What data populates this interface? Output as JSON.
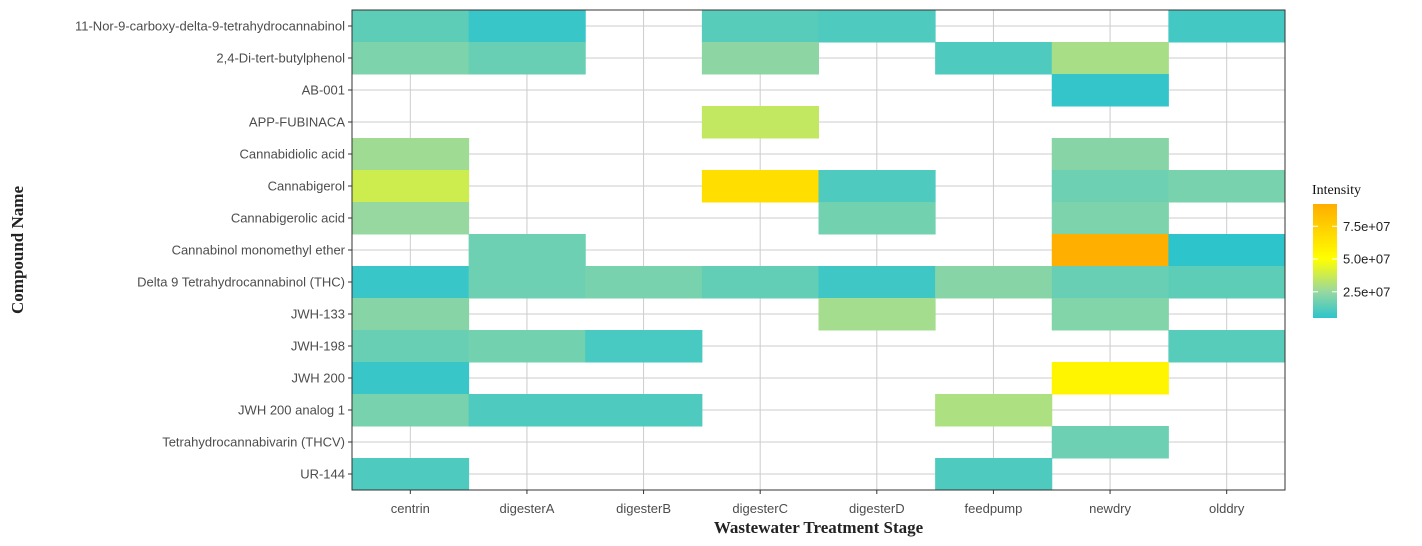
{
  "chart_data": {
    "type": "heatmap",
    "xlabel": "Wastewater Treatment Stage",
    "ylabel": "Compound Name",
    "legend_title": "Intensity",
    "legend_position": "right",
    "grid": true,
    "color_scale": {
      "min": 5000000,
      "max": 92000000,
      "stops": [
        {
          "value": 5000000,
          "color": "#2ec4cc"
        },
        {
          "value": 25000000,
          "color": "#97d8a0"
        },
        {
          "value": 50000000,
          "color": "#ffff00"
        },
        {
          "value": 92000000,
          "color": "#ffad00"
        }
      ]
    },
    "legend_ticks": [
      {
        "value": 25000000,
        "label": "2.5e+07"
      },
      {
        "value": 50000000,
        "label": "5.0e+07"
      },
      {
        "value": 75000000,
        "label": "7.5e+07"
      }
    ],
    "x": [
      "centrin",
      "digesterA",
      "digesterB",
      "digesterC",
      "digesterD",
      "feedpump",
      "newdry",
      "olddry"
    ],
    "y": [
      "11-Nor-9-carboxy-delta-9-tetrahydrocannabinol",
      "2,4-Di-tert-butylphenol",
      "AB-001",
      "APP-FUBINACA",
      "Cannabidiolic acid",
      "Cannabigerol",
      "Cannabigerolic acid",
      "Cannabinol monomethyl ether",
      "Delta 9 Tetrahydrocannabinol (THC)",
      "JWH-133",
      "JWH-198",
      "JWH 200",
      "JWH 200 analog 1",
      "Tetrahydrocannabivarin (THCV)",
      "UR-144"
    ],
    "cells": [
      {
        "x": "centrin",
        "y": "11-Nor-9-carboxy-delta-9-tetrahydrocannabinol",
        "value": 14000000
      },
      {
        "x": "digesterA",
        "y": "11-Nor-9-carboxy-delta-9-tetrahydrocannabinol",
        "value": 7000000
      },
      {
        "x": "digesterC",
        "y": "11-Nor-9-carboxy-delta-9-tetrahydrocannabinol",
        "value": 13000000
      },
      {
        "x": "digesterD",
        "y": "11-Nor-9-carboxy-delta-9-tetrahydrocannabinol",
        "value": 11000000
      },
      {
        "x": "olddry",
        "y": "11-Nor-9-carboxy-delta-9-tetrahydrocannabinol",
        "value": 9000000
      },
      {
        "x": "centrin",
        "y": "2,4-Di-tert-butylphenol",
        "value": 20000000
      },
      {
        "x": "digesterA",
        "y": "2,4-Di-tert-butylphenol",
        "value": 16000000
      },
      {
        "x": "digesterC",
        "y": "2,4-Di-tert-butylphenol",
        "value": 23000000
      },
      {
        "x": "feedpump",
        "y": "2,4-Di-tert-butylphenol",
        "value": 11000000
      },
      {
        "x": "newdry",
        "y": "2,4-Di-tert-butylphenol",
        "value": 29000000
      },
      {
        "x": "newdry",
        "y": "AB-001",
        "value": 6000000
      },
      {
        "x": "digesterC",
        "y": "APP-FUBINACA",
        "value": 35000000
      },
      {
        "x": "centrin",
        "y": "Cannabidiolic acid",
        "value": 27000000
      },
      {
        "x": "newdry",
        "y": "Cannabidiolic acid",
        "value": 22000000
      },
      {
        "x": "centrin",
        "y": "Cannabigerol",
        "value": 38000000
      },
      {
        "x": "digesterC",
        "y": "Cannabigerol",
        "value": 67000000
      },
      {
        "x": "digesterD",
        "y": "Cannabigerol",
        "value": 11000000
      },
      {
        "x": "newdry",
        "y": "Cannabigerol",
        "value": 17000000
      },
      {
        "x": "olddry",
        "y": "Cannabigerol",
        "value": 19000000
      },
      {
        "x": "centrin",
        "y": "Cannabigerolic acid",
        "value": 25000000
      },
      {
        "x": "digesterD",
        "y": "Cannabigerolic acid",
        "value": 18000000
      },
      {
        "x": "newdry",
        "y": "Cannabigerolic acid",
        "value": 20000000
      },
      {
        "x": "digesterA",
        "y": "Cannabinol monomethyl ether",
        "value": 17000000
      },
      {
        "x": "newdry",
        "y": "Cannabinol monomethyl ether",
        "value": 91000000
      },
      {
        "x": "olddry",
        "y": "Cannabinol monomethyl ether",
        "value": 5000000
      },
      {
        "x": "centrin",
        "y": "Delta 9 Tetrahydrocannabinol (THC)",
        "value": 7000000
      },
      {
        "x": "digesterA",
        "y": "Delta 9 Tetrahydrocannabinol (THC)",
        "value": 17000000
      },
      {
        "x": "digesterB",
        "y": "Delta 9 Tetrahydrocannabinol (THC)",
        "value": 19000000
      },
      {
        "x": "digesterC",
        "y": "Delta 9 Tetrahydrocannabinol (THC)",
        "value": 15000000
      },
      {
        "x": "digesterD",
        "y": "Delta 9 Tetrahydrocannabinol (THC)",
        "value": 8000000
      },
      {
        "x": "feedpump",
        "y": "Delta 9 Tetrahydrocannabinol (THC)",
        "value": 22000000
      },
      {
        "x": "newdry",
        "y": "Delta 9 Tetrahydrocannabinol (THC)",
        "value": 16000000
      },
      {
        "x": "olddry",
        "y": "Delta 9 Tetrahydrocannabinol (THC)",
        "value": 14000000
      },
      {
        "x": "centrin",
        "y": "JWH-133",
        "value": 22000000
      },
      {
        "x": "digesterD",
        "y": "JWH-133",
        "value": 28000000
      },
      {
        "x": "newdry",
        "y": "JWH-133",
        "value": 21000000
      },
      {
        "x": "centrin",
        "y": "JWH-198",
        "value": 16000000
      },
      {
        "x": "digesterA",
        "y": "JWH-198",
        "value": 18000000
      },
      {
        "x": "digesterB",
        "y": "JWH-198",
        "value": 10000000
      },
      {
        "x": "olddry",
        "y": "JWH-198",
        "value": 13000000
      },
      {
        "x": "centrin",
        "y": "JWH 200",
        "value": 7000000
      },
      {
        "x": "newdry",
        "y": "JWH 200",
        "value": 55000000
      },
      {
        "x": "centrin",
        "y": "JWH 200 analog 1",
        "value": 19000000
      },
      {
        "x": "digesterA",
        "y": "JWH 200 analog 1",
        "value": 11000000
      },
      {
        "x": "digesterB",
        "y": "JWH 200 analog 1",
        "value": 11000000
      },
      {
        "x": "feedpump",
        "y": "JWH 200 analog 1",
        "value": 30000000
      },
      {
        "x": "newdry",
        "y": "Tetrahydrocannabivarin (THCV)",
        "value": 17000000
      },
      {
        "x": "centrin",
        "y": "UR-144",
        "value": 11000000
      },
      {
        "x": "feedpump",
        "y": "UR-144",
        "value": 11000000
      }
    ]
  }
}
